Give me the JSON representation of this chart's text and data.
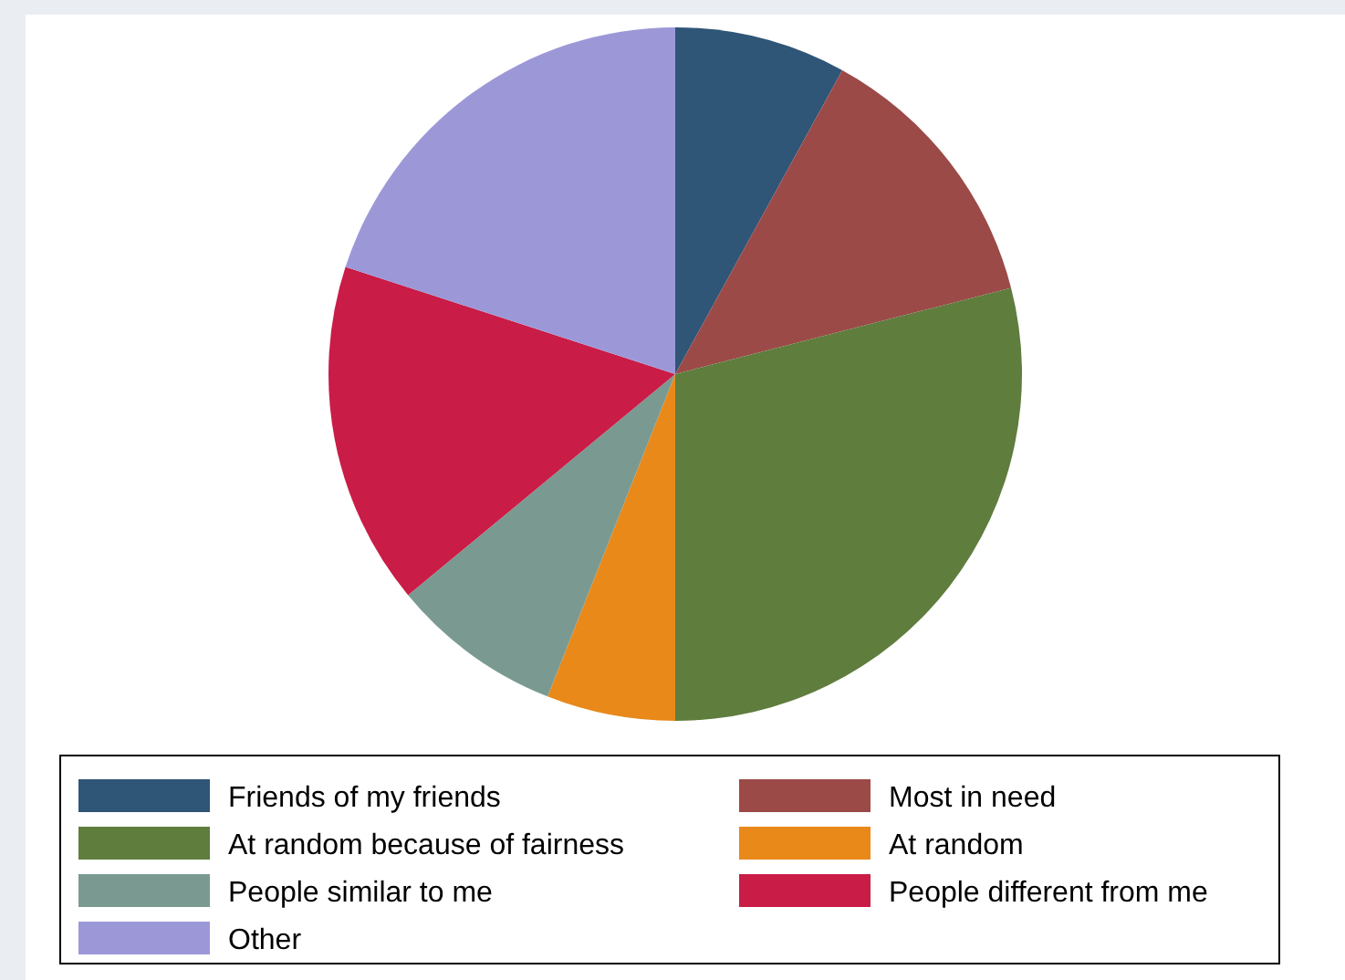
{
  "chart_data": {
    "type": "pie",
    "categories": [
      "Friends of my friends",
      "Most in need",
      "At random because of fairness",
      "At random",
      "People similar to me",
      "People different from me",
      "Other"
    ],
    "values": [
      8,
      13,
      29,
      6,
      8,
      16,
      20
    ],
    "colors": [
      "#2f5577",
      "#9b4a48",
      "#5f7d3d",
      "#e8891a",
      "#7a9a91",
      "#c91c46",
      "#9c98d8"
    ],
    "legend": "bottom"
  }
}
